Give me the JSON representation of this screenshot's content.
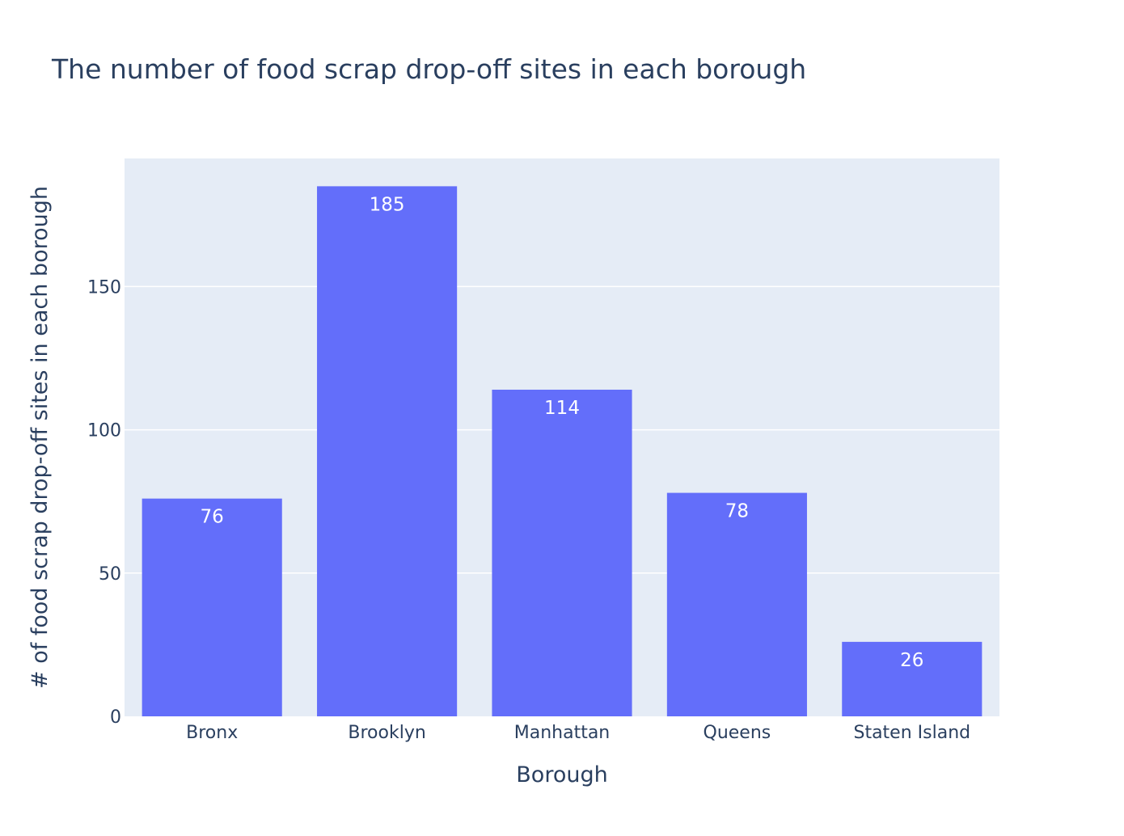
{
  "chart_data": {
    "type": "bar",
    "title": "The number of food scrap drop-off sites in each borough",
    "xlabel": "Borough",
    "ylabel": "# of food scrap drop-off sites in each borough",
    "categories": [
      "Bronx",
      "Brooklyn",
      "Manhattan",
      "Queens",
      "Staten Island"
    ],
    "values": [
      76,
      185,
      114,
      78,
      26
    ],
    "value_labels": [
      "76",
      "185",
      "114",
      "78",
      "26"
    ],
    "yticks": [
      0,
      50,
      100,
      150
    ],
    "ytick_labels": [
      "0",
      "50",
      "100",
      "150"
    ],
    "ylim": [
      0,
      194.7
    ],
    "grid": true,
    "legend": "none",
    "colors": {
      "bar": "#636efa",
      "plot_background": "#e5ecf6",
      "gridline": "#ffffff",
      "text": "#2a3f5f",
      "data_label": "#ffffff"
    }
  }
}
